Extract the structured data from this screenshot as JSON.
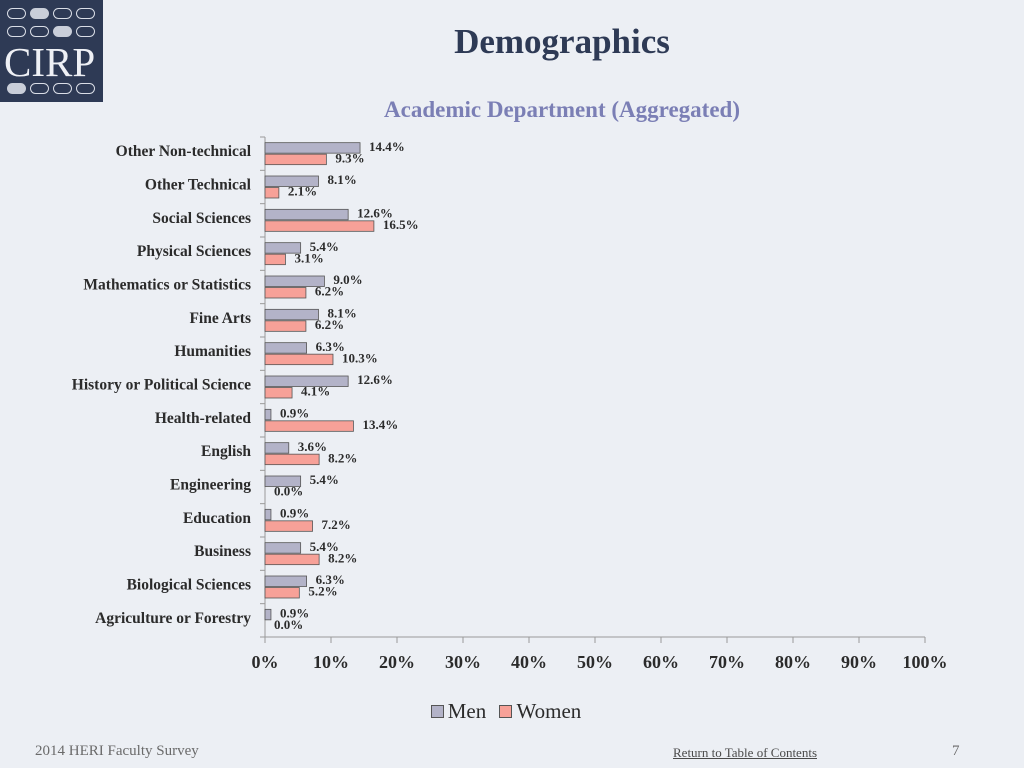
{
  "logo": {
    "text": "CIRP",
    "colors": {
      "background": "#2e3a55",
      "pill": "#d9dde6"
    }
  },
  "header": {
    "title": "Demographics"
  },
  "footer": {
    "survey": "2014 HERI Faculty Survey",
    "link": "Return to Table of Contents",
    "page": "7"
  },
  "chart_data": {
    "type": "bar",
    "orientation": "horizontal",
    "title": "Academic Department (Aggregated)",
    "xlabel": "",
    "ylabel": "",
    "xlim": [
      0,
      100
    ],
    "x_ticks": [
      "0%",
      "10%",
      "20%",
      "30%",
      "40%",
      "50%",
      "60%",
      "70%",
      "80%",
      "90%",
      "100%"
    ],
    "grid": false,
    "legend_position": "bottom",
    "categories": [
      "Other Non-technical",
      "Other Technical",
      "Social Sciences",
      "Physical Sciences",
      "Mathematics or Statistics",
      "Fine Arts",
      "Humanities",
      "History or Political Science",
      "Health-related",
      "English",
      "Engineering",
      "Education",
      "Business",
      "Biological Sciences",
      "Agriculture or Forestry"
    ],
    "series": [
      {
        "name": "Men",
        "color": "#b3b3c8",
        "values": [
          14.4,
          8.1,
          12.6,
          5.4,
          9.0,
          8.1,
          6.3,
          12.6,
          0.9,
          3.6,
          5.4,
          0.9,
          5.4,
          6.3,
          0.9
        ],
        "labels": [
          "14.4%",
          "8.1%",
          "12.6%",
          "5.4%",
          "9.0%",
          "8.1%",
          "6.3%",
          "12.6%",
          "0.9%",
          "3.6%",
          "5.4%",
          "0.9%",
          "5.4%",
          "6.3%",
          "0.9%"
        ]
      },
      {
        "name": "Women",
        "color": "#f7a198",
        "values": [
          9.3,
          2.1,
          16.5,
          3.1,
          6.2,
          6.2,
          10.3,
          4.1,
          13.4,
          8.2,
          0.0,
          7.2,
          8.2,
          5.2,
          0.0
        ],
        "labels": [
          "9.3%",
          "2.1%",
          "16.5%",
          "3.1%",
          "6.2%",
          "6.2%",
          "10.3%",
          "4.1%",
          "13.4%",
          "8.2%",
          "0.0%",
          "7.2%",
          "8.2%",
          "5.2%",
          "0.0%"
        ]
      }
    ]
  }
}
